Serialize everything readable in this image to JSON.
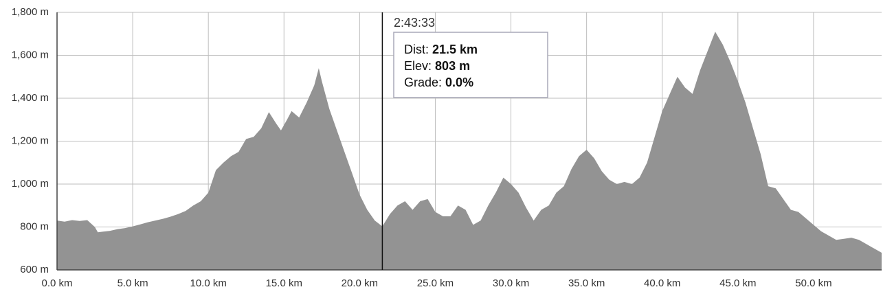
{
  "chart_data": {
    "type": "area",
    "color": "#939393",
    "grid": true,
    "x": [
      0,
      0.5,
      1,
      1.5,
      2,
      2.5,
      2.7,
      3,
      3.5,
      4,
      4.5,
      5,
      5.5,
      6,
      6.5,
      7,
      7.5,
      8,
      8.5,
      9,
      9.5,
      10,
      10.5,
      11,
      11.5,
      12,
      12.5,
      13,
      13.5,
      14,
      14.5,
      14.8,
      15.2,
      15.5,
      16,
      16.5,
      17,
      17.3,
      17.5,
      18,
      18.5,
      19,
      19.5,
      20,
      20.5,
      21,
      21.5,
      22,
      22.5,
      23,
      23.5,
      24,
      24.5,
      25,
      25.5,
      26,
      26.5,
      27,
      27.5,
      28,
      28.5,
      29,
      29.5,
      30,
      30.5,
      31,
      31.5,
      32,
      32.5,
      33,
      33.5,
      34,
      34.5,
      35,
      35.5,
      36,
      36.5,
      37,
      37.5,
      38,
      38.5,
      39,
      39.5,
      40,
      40.5,
      41,
      41.5,
      42,
      42.5,
      43,
      43.5,
      44,
      44.5,
      45,
      45.5,
      46,
      46.5,
      47,
      47.5,
      48,
      48.5,
      49,
      49.5,
      50,
      50.5,
      51,
      51.5,
      52,
      52.5,
      53,
      53.5,
      54,
      54.5
    ],
    "values": [
      830,
      825,
      832,
      828,
      832,
      800,
      775,
      778,
      782,
      790,
      795,
      803,
      812,
      822,
      830,
      838,
      848,
      860,
      875,
      900,
      920,
      960,
      1065,
      1100,
      1130,
      1150,
      1210,
      1220,
      1260,
      1335,
      1280,
      1250,
      1300,
      1340,
      1310,
      1380,
      1460,
      1540,
      1480,
      1350,
      1250,
      1150,
      1050,
      950,
      880,
      830,
      803,
      860,
      900,
      920,
      880,
      920,
      930,
      870,
      850,
      850,
      900,
      880,
      810,
      830,
      900,
      960,
      1030,
      1000,
      960,
      890,
      830,
      880,
      900,
      960,
      990,
      1070,
      1130,
      1160,
      1120,
      1060,
      1020,
      1000,
      1010,
      1000,
      1030,
      1100,
      1220,
      1340,
      1420,
      1500,
      1450,
      1420,
      1530,
      1620,
      1710,
      1650,
      1570,
      1480,
      1380,
      1260,
      1140,
      990,
      980,
      930,
      880,
      870,
      840,
      810,
      780,
      760,
      740,
      745,
      750,
      740,
      720,
      700,
      680
    ],
    "xlim": [
      0,
      54.5
    ],
    "ylim": [
      600,
      1800
    ],
    "xticks": [
      {
        "value": 0,
        "label": "0.0 km"
      },
      {
        "value": 5,
        "label": "5.0 km"
      },
      {
        "value": 10,
        "label": "10.0 km"
      },
      {
        "value": 15,
        "label": "15.0 km"
      },
      {
        "value": 20,
        "label": "20.0 km"
      },
      {
        "value": 25,
        "label": "25.0 km"
      },
      {
        "value": 30,
        "label": "30.0 km"
      },
      {
        "value": 35,
        "label": "35.0 km"
      },
      {
        "value": 40,
        "label": "40.0 km"
      },
      {
        "value": 45,
        "label": "45.0 km"
      },
      {
        "value": 50,
        "label": "50.0 km"
      }
    ],
    "yticks": [
      {
        "value": 600,
        "label": "600 m"
      },
      {
        "value": 800,
        "label": "800 m"
      },
      {
        "value": 1000,
        "label": "1,000 m"
      },
      {
        "value": 1200,
        "label": "1,200 m"
      },
      {
        "value": 1400,
        "label": "1,400 m"
      },
      {
        "value": 1600,
        "label": "1,600 m"
      },
      {
        "value": 1800,
        "label": "1,800 m"
      }
    ],
    "cursor": {
      "time": "2:43:33",
      "dist_name": "Dist:",
      "x": 21.5,
      "x_label": "21.5 km",
      "elev_name": "Elev:",
      "y": 803,
      "y_label": "803 m",
      "grade_name": "Grade:",
      "grade": 0,
      "grade_label": "0.0%"
    }
  }
}
